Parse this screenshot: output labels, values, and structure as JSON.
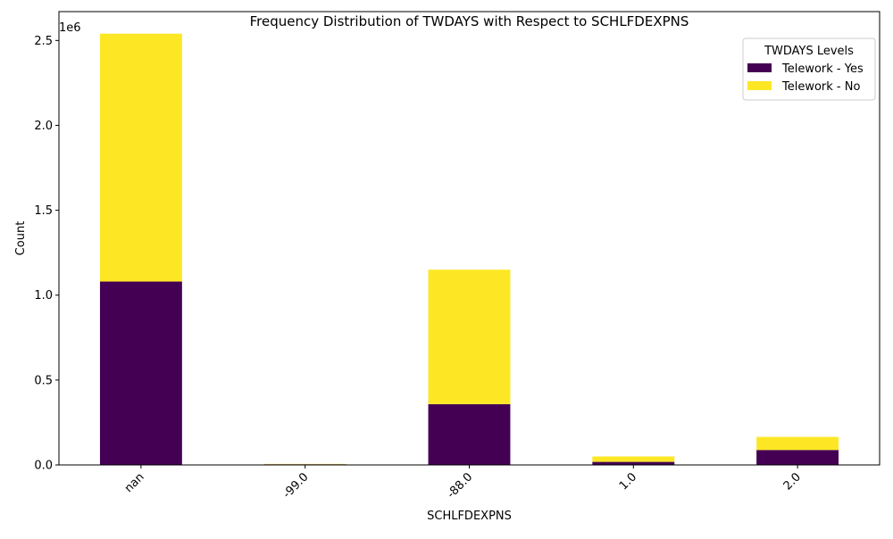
{
  "chart_data": {
    "type": "bar",
    "stacked": true,
    "title": "Frequency Distribution of TWDAYS with Respect to SCHLFDEXPNS",
    "xlabel": "SCHLFDEXPNS",
    "ylabel": "Count",
    "offset_label": "1e6",
    "categories": [
      "nan",
      "-99.0",
      "-88.0",
      "1.0",
      "2.0"
    ],
    "series": [
      {
        "name": "Telework - Yes",
        "color": "#440154",
        "values": [
          1080000,
          4000,
          358000,
          18000,
          88000
        ]
      },
      {
        "name": "Telework - No",
        "color": "#fde725",
        "values": [
          1460000,
          2000,
          792000,
          32000,
          77000
        ]
      }
    ],
    "ylim": [
      0,
      2670000
    ],
    "yticks": [
      0,
      500000,
      1000000,
      1500000,
      2000000,
      2500000
    ],
    "ytick_labels": [
      "0.0",
      "0.5",
      "1.0",
      "1.5",
      "2.0",
      "2.5"
    ],
    "legend": {
      "title": "TWDAYS Levels",
      "position": "top-right"
    },
    "grid": false,
    "xtick_rotation": 45
  }
}
